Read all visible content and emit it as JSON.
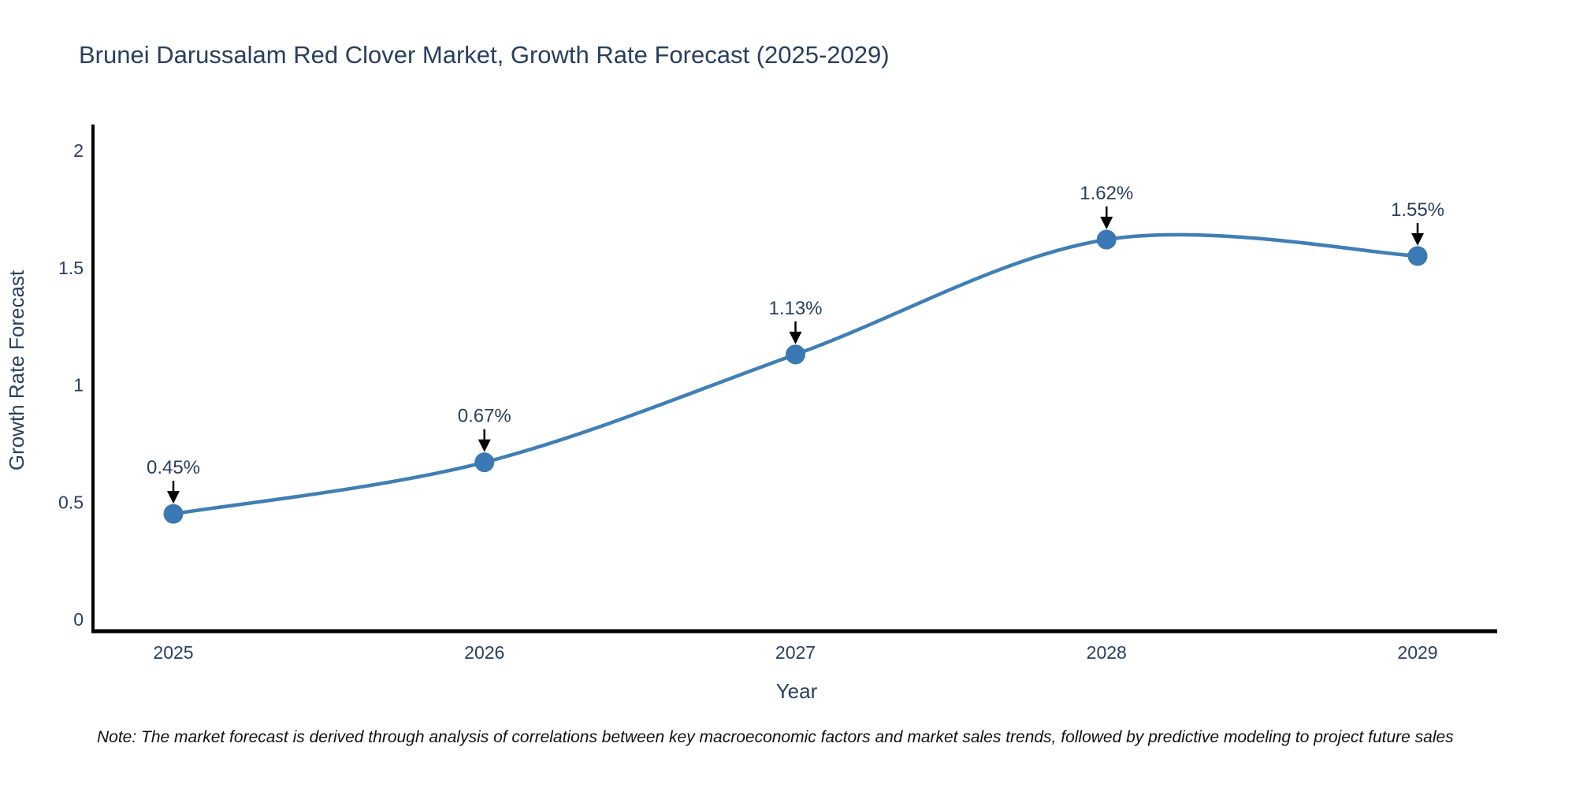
{
  "page": {
    "title": "Brunei Darussalam Red Clover Market, Growth Rate Forecast (2025-2029)",
    "note": "Note: The market forecast is derived through analysis of correlations between key macroeconomic factors and market sales trends, followed by predictive modeling to project future sales"
  },
  "chart_data": {
    "type": "line",
    "title": "Brunei Darussalam Red Clover Market, Growth Rate Forecast (2025-2029)",
    "xlabel": "Year",
    "ylabel": "Growth Rate Forecast",
    "categories": [
      "2025",
      "2026",
      "2027",
      "2028",
      "2029"
    ],
    "x": [
      2025,
      2026,
      2027,
      2028,
      2029
    ],
    "values": [
      0.45,
      0.67,
      1.13,
      1.62,
      1.55
    ],
    "point_labels": [
      "0.45%",
      "0.67%",
      "1.13%",
      "1.62%",
      "1.55%"
    ],
    "yticks": [
      0,
      0.5,
      1,
      1.5,
      2
    ],
    "ytick_labels": [
      "0",
      "0.5",
      "1",
      "1.5",
      "2"
    ],
    "ylim": [
      -0.05,
      2.1
    ],
    "line_shape": "spline",
    "grid": false,
    "legend": false,
    "note": "Note: The market forecast is derived through analysis of correlations between key macroeconomic factors and market sales trends, followed by predictive modeling to project future sales",
    "colors": {
      "line": "#3f7fb5",
      "marker": "#3a79b3",
      "arrow": "#000000",
      "font": "#2a3f5f",
      "axis": "#000000",
      "note": "#111111",
      "background": "#ffffff"
    }
  }
}
